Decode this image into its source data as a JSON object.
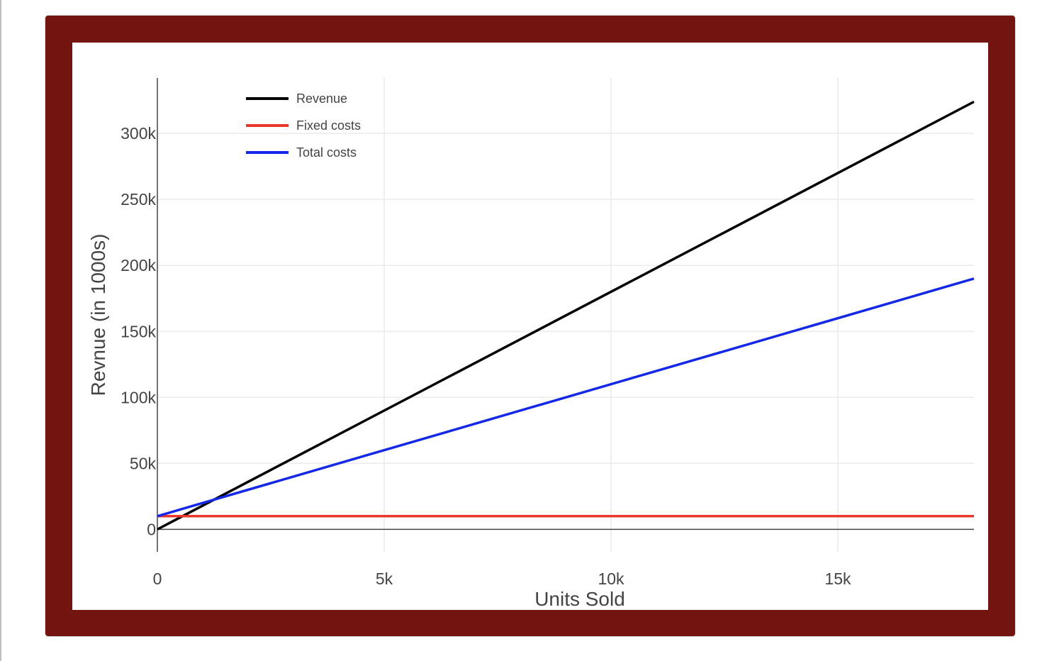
{
  "chart_data": {
    "type": "line",
    "xlabel": "Units Sold",
    "ylabel": "Revnue (in 1000s)",
    "xlim": [
      0,
      18000
    ],
    "ylim": [
      -17000,
      342000
    ],
    "xticks": [
      {
        "value": 0,
        "label": "0"
      },
      {
        "value": 5000,
        "label": "5k"
      },
      {
        "value": 10000,
        "label": "10k"
      },
      {
        "value": 15000,
        "label": "15k"
      }
    ],
    "yticks": [
      {
        "value": 0,
        "label": "0"
      },
      {
        "value": 50000,
        "label": "50k"
      },
      {
        "value": 100000,
        "label": "100k"
      },
      {
        "value": 150000,
        "label": "150k"
      },
      {
        "value": 200000,
        "label": "200k"
      },
      {
        "value": 250000,
        "label": "250k"
      },
      {
        "value": 300000,
        "label": "300k"
      }
    ],
    "grid": true,
    "legend_position": "top-left",
    "series": [
      {
        "name": "Revenue",
        "color": "#000000",
        "x": [
          0,
          18000
        ],
        "y": [
          0,
          324000
        ]
      },
      {
        "name": "Fixed costs",
        "color": "#e8382d",
        "x": [
          0,
          18000
        ],
        "y": [
          10000,
          10000
        ]
      },
      {
        "name": "Total costs",
        "color": "#1428e6",
        "x": [
          0,
          18000
        ],
        "y": [
          10000,
          190000
        ]
      }
    ]
  }
}
